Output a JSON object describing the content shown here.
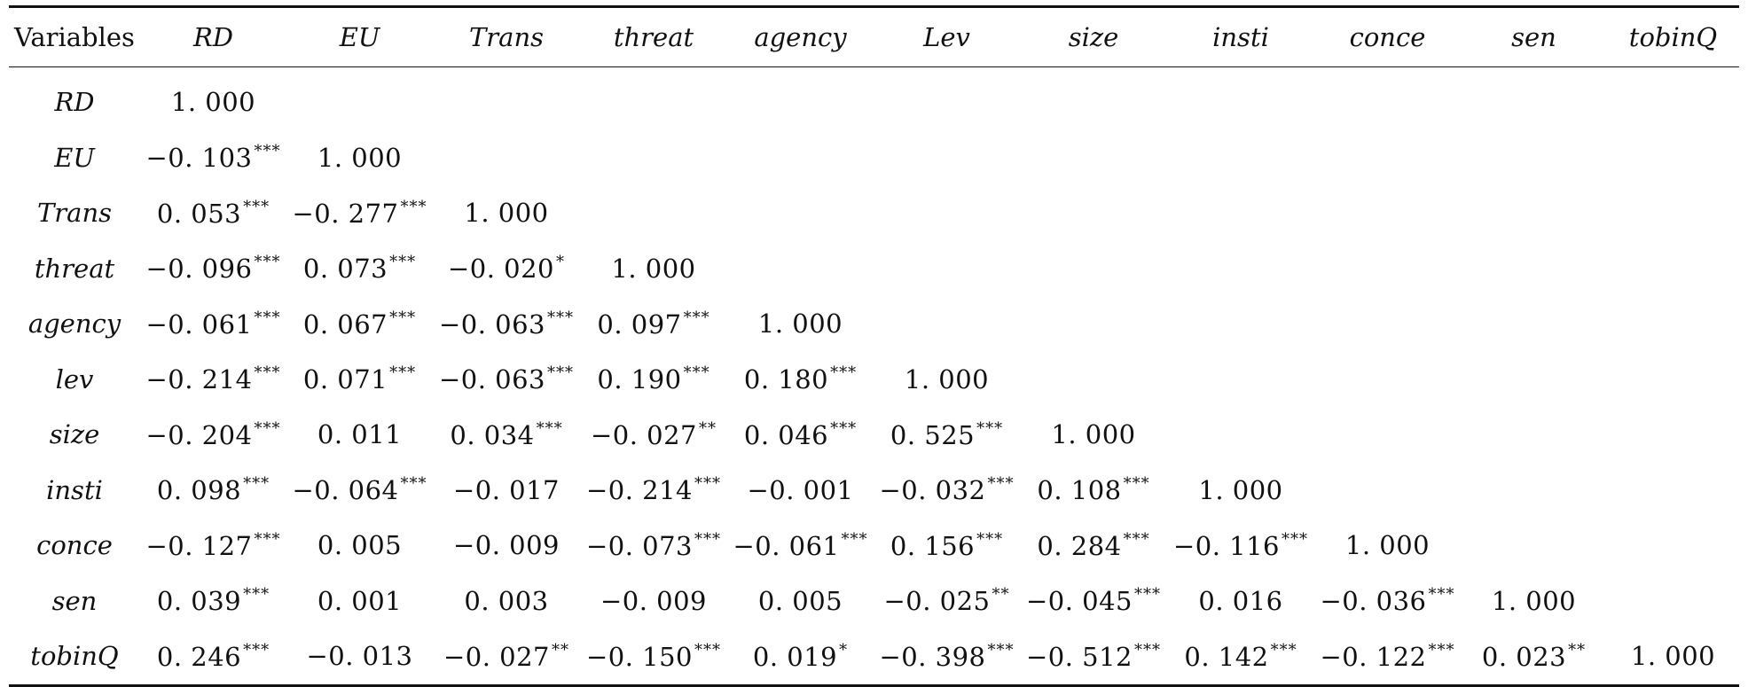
{
  "table": {
    "header_label": "Variables",
    "columns": [
      "RD",
      "EU",
      "Trans",
      "threat",
      "agency",
      "Lev",
      "size",
      "insti",
      "conce",
      "sen",
      "tobinQ"
    ],
    "rows": [
      {
        "label": "RD",
        "cells": [
          {
            "v": "1. 000",
            "s": ""
          }
        ]
      },
      {
        "label": "EU",
        "cells": [
          {
            "v": "−0. 103",
            "s": "***"
          },
          {
            "v": "1. 000",
            "s": ""
          }
        ]
      },
      {
        "label": "Trans",
        "cells": [
          {
            "v": "0. 053",
            "s": "***"
          },
          {
            "v": "−0. 277",
            "s": "***"
          },
          {
            "v": "1. 000",
            "s": ""
          }
        ]
      },
      {
        "label": "threat",
        "cells": [
          {
            "v": "−0. 096",
            "s": "***"
          },
          {
            "v": "0. 073",
            "s": "***"
          },
          {
            "v": "−0. 020",
            "s": "*"
          },
          {
            "v": "1. 000",
            "s": ""
          }
        ]
      },
      {
        "label": "agency",
        "cells": [
          {
            "v": "−0. 061",
            "s": "***"
          },
          {
            "v": "0. 067",
            "s": "***"
          },
          {
            "v": "−0. 063",
            "s": "***"
          },
          {
            "v": "0. 097",
            "s": "***"
          },
          {
            "v": "1. 000",
            "s": ""
          }
        ]
      },
      {
        "label": "lev",
        "cells": [
          {
            "v": "−0. 214",
            "s": "***"
          },
          {
            "v": "0. 071",
            "s": "***"
          },
          {
            "v": "−0. 063",
            "s": "***"
          },
          {
            "v": "0. 190",
            "s": "***"
          },
          {
            "v": "0. 180",
            "s": "***"
          },
          {
            "v": "1. 000",
            "s": ""
          }
        ]
      },
      {
        "label": "size",
        "cells": [
          {
            "v": "−0. 204",
            "s": "***"
          },
          {
            "v": "0. 011",
            "s": ""
          },
          {
            "v": "0. 034",
            "s": "***"
          },
          {
            "v": "−0. 027",
            "s": "**"
          },
          {
            "v": "0. 046",
            "s": "***"
          },
          {
            "v": "0. 525",
            "s": "***"
          },
          {
            "v": "1. 000",
            "s": ""
          }
        ]
      },
      {
        "label": "insti",
        "cells": [
          {
            "v": "0. 098",
            "s": "***"
          },
          {
            "v": "−0. 064",
            "s": "***"
          },
          {
            "v": "−0. 017",
            "s": ""
          },
          {
            "v": "−0. 214",
            "s": "***"
          },
          {
            "v": "−0. 001",
            "s": ""
          },
          {
            "v": "−0. 032",
            "s": "***"
          },
          {
            "v": "0. 108",
            "s": "***"
          },
          {
            "v": "1. 000",
            "s": ""
          }
        ]
      },
      {
        "label": "conce",
        "cells": [
          {
            "v": "−0. 127",
            "s": "***"
          },
          {
            "v": "0. 005",
            "s": ""
          },
          {
            "v": "−0. 009",
            "s": ""
          },
          {
            "v": "−0. 073",
            "s": "***"
          },
          {
            "v": "−0. 061",
            "s": "***"
          },
          {
            "v": "0. 156",
            "s": "***"
          },
          {
            "v": "0. 284",
            "s": "***"
          },
          {
            "v": "−0. 116",
            "s": "***"
          },
          {
            "v": "1. 000",
            "s": ""
          }
        ]
      },
      {
        "label": "sen",
        "cells": [
          {
            "v": "0. 039",
            "s": "***"
          },
          {
            "v": "0. 001",
            "s": ""
          },
          {
            "v": "0. 003",
            "s": ""
          },
          {
            "v": "−0. 009",
            "s": ""
          },
          {
            "v": "0. 005",
            "s": ""
          },
          {
            "v": "−0. 025",
            "s": "**"
          },
          {
            "v": "−0. 045",
            "s": "***"
          },
          {
            "v": "0. 016",
            "s": ""
          },
          {
            "v": "−0. 036",
            "s": "***"
          },
          {
            "v": "1. 000",
            "s": ""
          }
        ]
      },
      {
        "label": "tobinQ",
        "cells": [
          {
            "v": "0. 246",
            "s": "***"
          },
          {
            "v": "−0. 013",
            "s": ""
          },
          {
            "v": "−0. 027",
            "s": "**"
          },
          {
            "v": "−0. 150",
            "s": "***"
          },
          {
            "v": "0. 019",
            "s": "*"
          },
          {
            "v": "−0. 398",
            "s": "***"
          },
          {
            "v": "−0. 512",
            "s": "***"
          },
          {
            "v": "0. 142",
            "s": "***"
          },
          {
            "v": "−0. 122",
            "s": "***"
          },
          {
            "v": "0. 023",
            "s": "**"
          },
          {
            "v": "1. 000",
            "s": ""
          }
        ]
      }
    ]
  }
}
